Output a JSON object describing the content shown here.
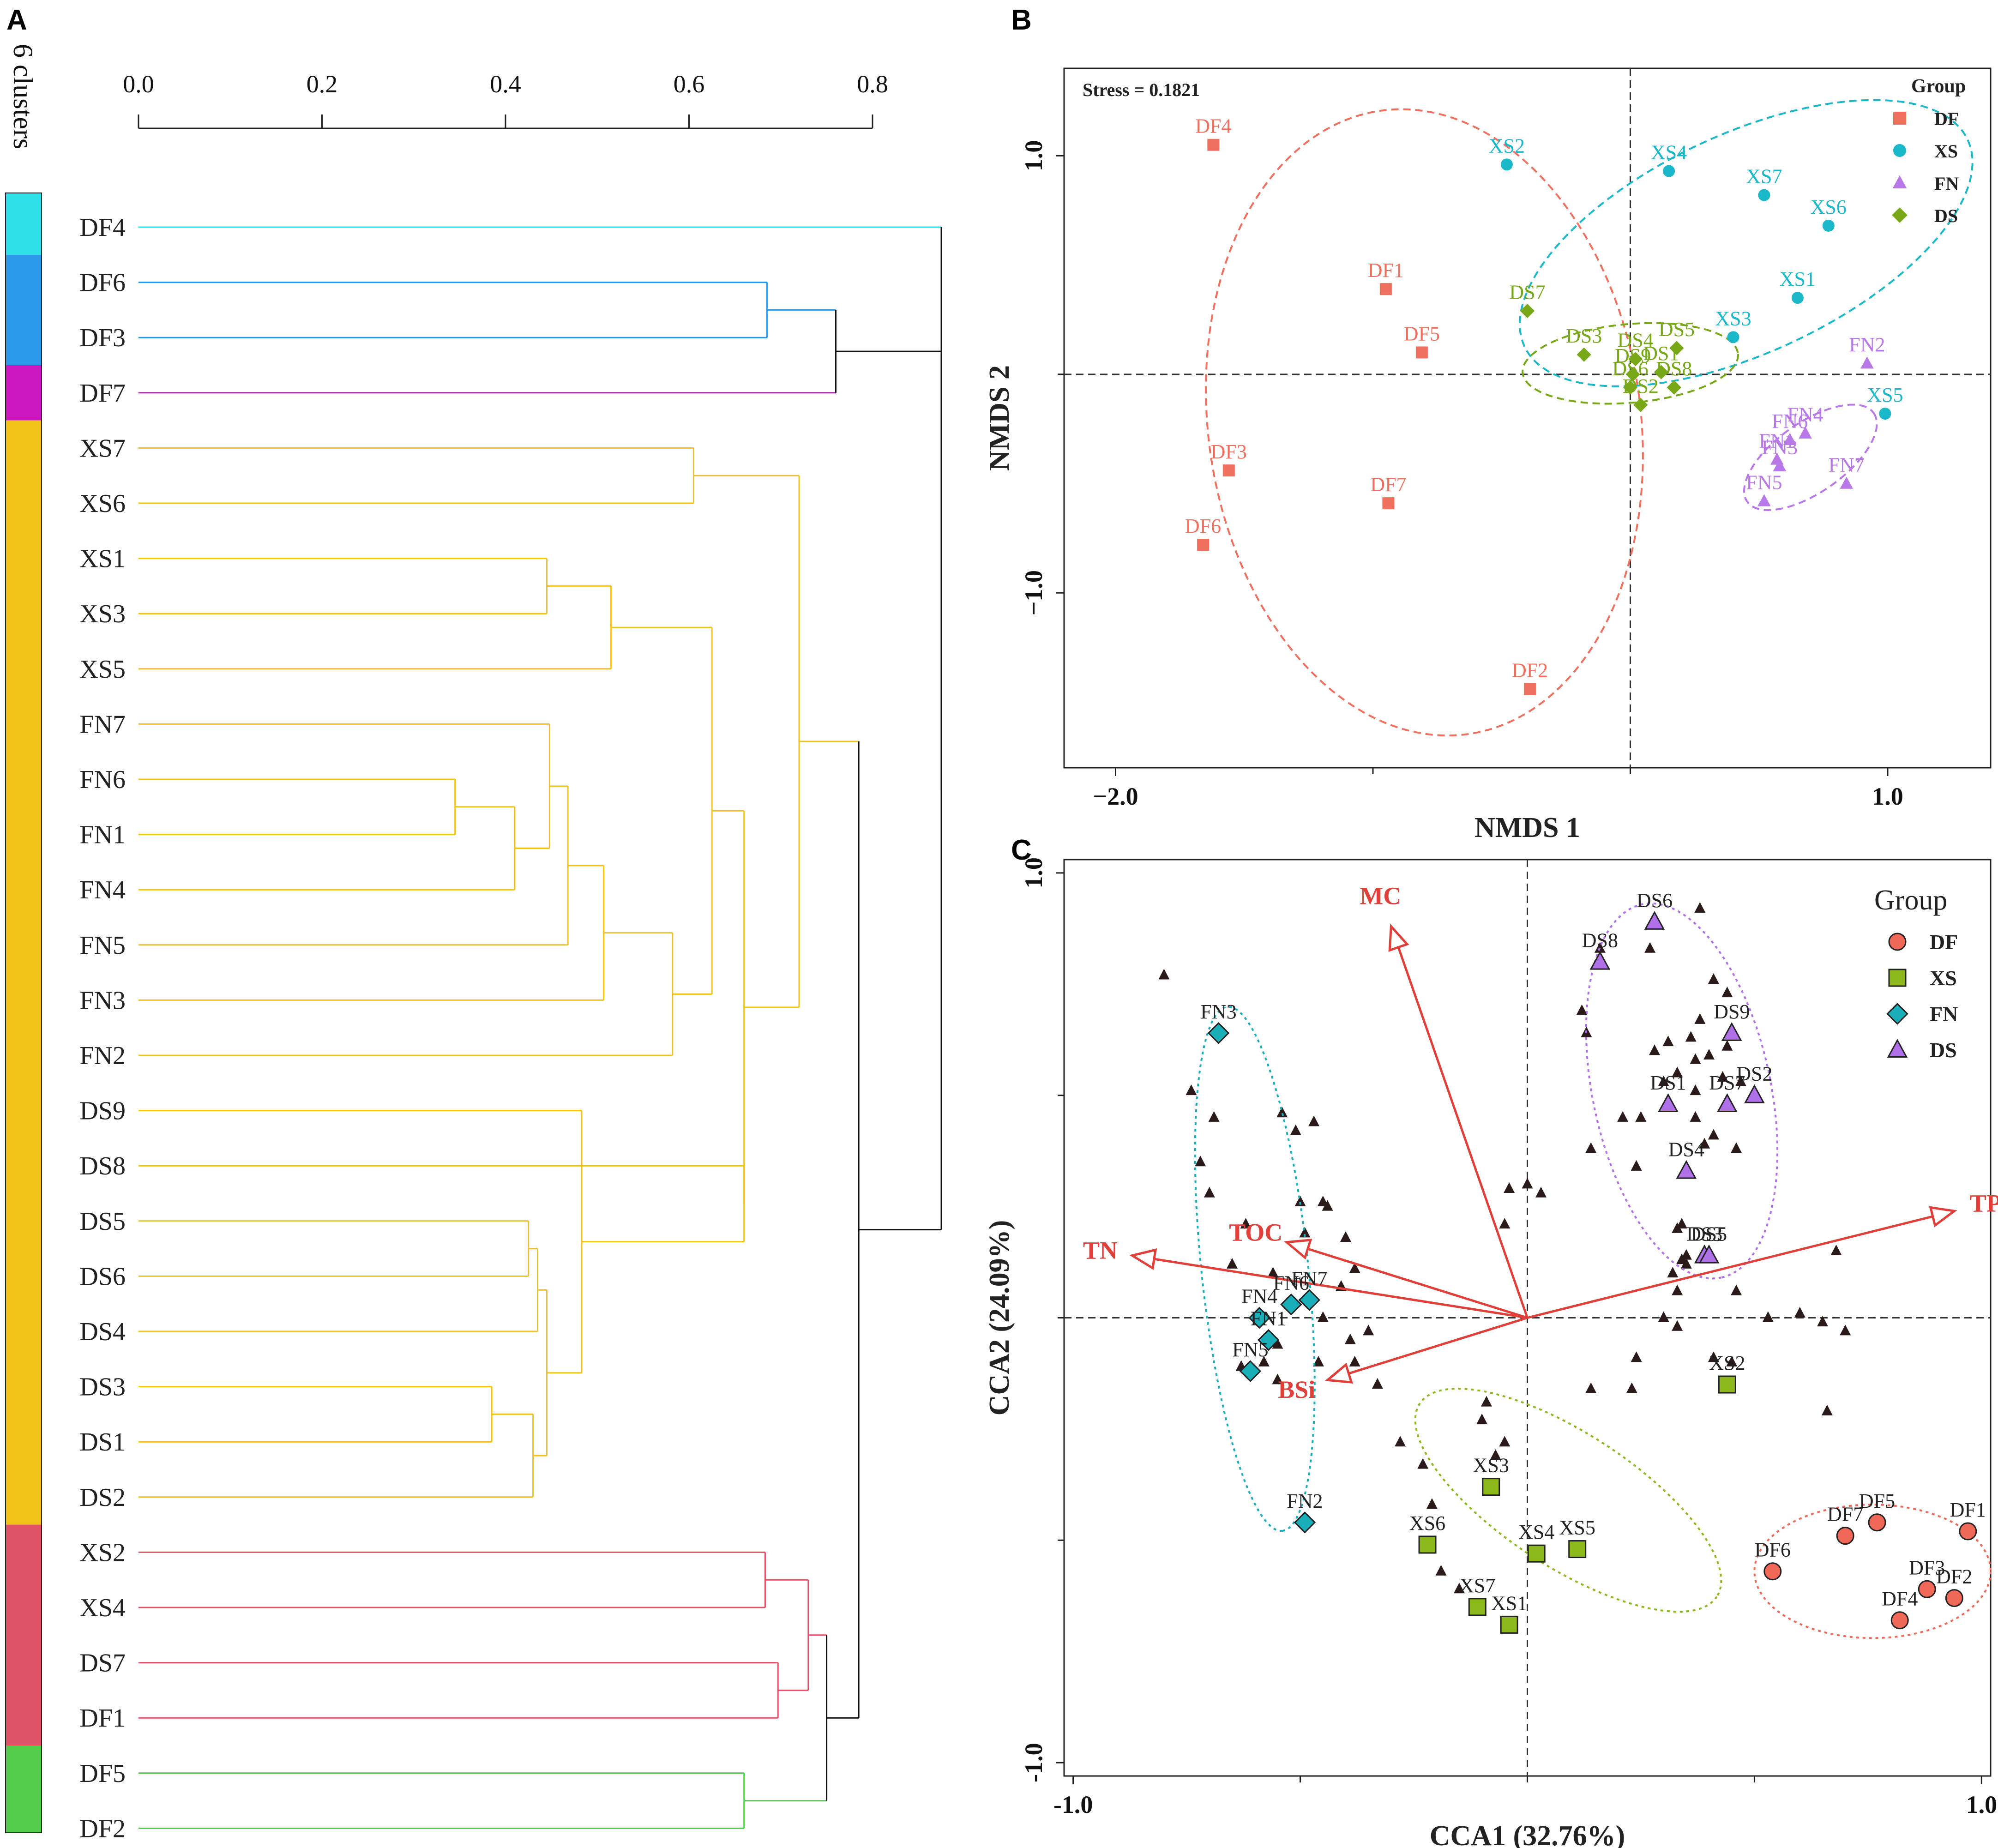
{
  "figure": {
    "panel_labels": [
      "A",
      "B",
      "C"
    ]
  },
  "chart_data": [
    {
      "type": "dendrogram",
      "panel": "A",
      "axis_ticks": [
        "0.0",
        "0.2",
        "0.4",
        "0.6",
        "0.8"
      ],
      "xlim": [
        0.0,
        0.8
      ],
      "cluster_label": "6 clusters",
      "leaves": [
        "DF4",
        "DF6",
        "DF3",
        "DF7",
        "XS7",
        "XS6",
        "XS1",
        "XS3",
        "XS5",
        "FN7",
        "FN6",
        "FN1",
        "FN4",
        "FN5",
        "FN3",
        "FN2",
        "DS9",
        "DS8",
        "DS5",
        "DS6",
        "DS4",
        "DS3",
        "DS1",
        "DS2",
        "XS2",
        "XS4",
        "DS7",
        "DF1",
        "DF5",
        "DF2"
      ],
      "clusters": [
        {
          "color": "#2fe0e8",
          "count": 1
        },
        {
          "color": "#2b98e8",
          "count": 2
        },
        {
          "color": "#cc18c0",
          "count": 1
        },
        {
          "color": "#f2c21a",
          "count": 20
        },
        {
          "color": "#e05268",
          "count": 4
        },
        {
          "color": "#52cc4a",
          "count": 2
        }
      ],
      "merges": [
        {
          "a": "FN6",
          "b": "FN1",
          "h": 0.345,
          "id": "n1"
        },
        {
          "a": "DS3",
          "b": "DS1",
          "h": 0.385,
          "id": "n2"
        },
        {
          "a": "n1",
          "b": "FN4",
          "h": 0.41,
          "id": "n3"
        },
        {
          "a": "DS5",
          "b": "DS6",
          "h": 0.425,
          "id": "n4"
        },
        {
          "a": "n2",
          "b": "DS2",
          "h": 0.43,
          "id": "n5"
        },
        {
          "a": "n4",
          "b": "DS4",
          "h": 0.435,
          "id": "n6"
        },
        {
          "a": "n6",
          "b": "n5",
          "h": 0.445,
          "id": "n7"
        },
        {
          "a": "XS1",
          "b": "XS3",
          "h": 0.445,
          "id": "n8"
        },
        {
          "a": "FN7",
          "b": "n3",
          "h": 0.448,
          "id": "n9"
        },
        {
          "a": "n9",
          "b": "FN5",
          "h": 0.468,
          "id": "n10"
        },
        {
          "a": "DS9",
          "b": "n7",
          "h": 0.483,
          "id": "n11"
        },
        {
          "a": "n8",
          "b": "XS5",
          "h": 0.515,
          "id": "n12"
        },
        {
          "a": "n10",
          "b": "FN3",
          "h": 0.507,
          "id": "n13"
        },
        {
          "a": "n13",
          "b": "FN2",
          "h": 0.582,
          "id": "n14"
        },
        {
          "a": "DS8",
          "b": "n11",
          "h": 0.66,
          "id": "n15"
        },
        {
          "a": "n12",
          "b": "n14",
          "h": 0.625,
          "id": "n16"
        },
        {
          "a": "n16",
          "b": "n15",
          "h": 0.66,
          "id": "n17"
        },
        {
          "a": "XS7",
          "b": "XS6",
          "h": 0.605,
          "id": "n18"
        },
        {
          "a": "n18",
          "b": "n17",
          "h": 0.72,
          "id": "n19"
        },
        {
          "a": "DF6",
          "b": "DF3",
          "h": 0.685,
          "id": "n20"
        },
        {
          "a": "n20",
          "b": "DF7",
          "h": 0.76,
          "id": "n21"
        },
        {
          "a": "XS2",
          "b": "XS4",
          "h": 0.683,
          "id": "n22"
        },
        {
          "a": "DS7",
          "b": "DF1",
          "h": 0.697,
          "id": "n23"
        },
        {
          "a": "n22",
          "b": "n23",
          "h": 0.73,
          "id": "n24"
        },
        {
          "a": "DF5",
          "b": "DF2",
          "h": 0.66,
          "id": "n25"
        },
        {
          "a": "n24",
          "b": "n25",
          "h": 0.75,
          "id": "n26"
        },
        {
          "a": "n19",
          "b": "n26",
          "h": 0.785,
          "id": "n27"
        },
        {
          "a": "n21",
          "b": "n27",
          "h": 0.875,
          "id": "n28"
        },
        {
          "a": "DF4",
          "b": "n28",
          "h": 0.875,
          "id": "n29"
        }
      ]
    },
    {
      "type": "scatter",
      "panel": "B",
      "title": "Stress = 0.1821",
      "xlabel": "NMDS 1",
      "ylabel": "NMDS 2",
      "xlim": [
        -2.2,
        1.4
      ],
      "ylim": [
        -1.8,
        1.4
      ],
      "xticks": [
        -2.0,
        1.0
      ],
      "yticks": [
        1.0,
        -1.0
      ],
      "xtick_labels": [
        "−2.0",
        "1.0"
      ],
      "ytick_labels": [
        "1.0",
        "−1.0"
      ],
      "legend_title": "Group",
      "legend_position": "top-right",
      "groups": [
        {
          "name": "DF",
          "color": "#f07060",
          "marker": "square",
          "points": [
            {
              "label": "DF4",
              "x": -1.62,
              "y": 1.05
            },
            {
              "label": "DF1",
              "x": -0.95,
              "y": 0.39
            },
            {
              "label": "DF5",
              "x": -0.81,
              "y": 0.1
            },
            {
              "label": "DF3",
              "x": -1.56,
              "y": -0.44
            },
            {
              "label": "DF7",
              "x": -0.94,
              "y": -0.59
            },
            {
              "label": "DF6",
              "x": -1.66,
              "y": -0.78
            },
            {
              "label": "DF2",
              "x": -0.39,
              "y": -1.44
            }
          ]
        },
        {
          "name": "XS",
          "color": "#1ab8c8",
          "marker": "circle",
          "points": [
            {
              "label": "XS2",
              "x": -0.48,
              "y": 0.96
            },
            {
              "label": "XS4",
              "x": 0.15,
              "y": 0.93
            },
            {
              "label": "XS7",
              "x": 0.52,
              "y": 0.82
            },
            {
              "label": "XS6",
              "x": 0.77,
              "y": 0.68
            },
            {
              "label": "XS1",
              "x": 0.65,
              "y": 0.35
            },
            {
              "label": "XS3",
              "x": 0.4,
              "y": 0.17
            },
            {
              "label": "XS5",
              "x": 0.99,
              "y": -0.18
            }
          ]
        },
        {
          "name": "FN",
          "color": "#b878e8",
          "marker": "triangle",
          "points": [
            {
              "label": "FN2",
              "x": 0.92,
              "y": 0.05
            },
            {
              "label": "FN4",
              "x": 0.68,
              "y": -0.27
            },
            {
              "label": "FN6",
              "x": 0.62,
              "y": -0.3
            },
            {
              "label": "FN1",
              "x": 0.57,
              "y": -0.39
            },
            {
              "label": "FN3",
              "x": 0.58,
              "y": -0.42
            },
            {
              "label": "FN7",
              "x": 0.84,
              "y": -0.5
            },
            {
              "label": "FN5",
              "x": 0.52,
              "y": -0.58
            }
          ]
        },
        {
          "name": "DS",
          "color": "#78a818",
          "marker": "diamond",
          "points": [
            {
              "label": "DS7",
              "x": -0.4,
              "y": 0.29
            },
            {
              "label": "DS3",
              "x": -0.18,
              "y": 0.09
            },
            {
              "label": "DS4",
              "x": 0.02,
              "y": 0.07
            },
            {
              "label": "DS5",
              "x": 0.18,
              "y": 0.12
            },
            {
              "label": "DS9",
              "x": 0.01,
              "y": 0.0
            },
            {
              "label": "DS1",
              "x": 0.12,
              "y": 0.01
            },
            {
              "label": "DS6",
              "x": 0.0,
              "y": -0.06
            },
            {
              "label": "DS8",
              "x": 0.17,
              "y": -0.06
            },
            {
              "label": "DS2",
              "x": 0.04,
              "y": -0.14
            }
          ]
        }
      ],
      "ellipses": [
        {
          "group": "DF",
          "cx": -0.8,
          "cy": -0.22,
          "rx": 0.84,
          "ry": 1.44,
          "rotation_deg": -8
        },
        {
          "group": "XS",
          "cx": 0.45,
          "cy": 0.6,
          "rx": 0.95,
          "ry": 0.5,
          "rotation_deg": -25
        },
        {
          "group": "FN",
          "cx": 0.7,
          "cy": -0.38,
          "rx": 0.3,
          "ry": 0.16,
          "rotation_deg": -35
        },
        {
          "group": "DS",
          "cx": 0.0,
          "cy": 0.05,
          "rx": 0.42,
          "ry": 0.18,
          "rotation_deg": -5
        }
      ],
      "reference_lines": {
        "x": 0,
        "y": 0
      }
    },
    {
      "type": "scatter",
      "panel": "C",
      "xlabel": "CCA1 (32.76%)",
      "ylabel": "CCA2 (24.09%)",
      "xlim": [
        -1.02,
        1.02
      ],
      "ylim": [
        -1.03,
        1.03
      ],
      "xticks": [
        -1.0,
        1.0
      ],
      "yticks": [
        1.0,
        -1.0
      ],
      "xtick_labels": [
        "-1.0",
        "1.0"
      ],
      "ytick_labels": [
        "1.0",
        "-1.0"
      ],
      "legend_title": "Group",
      "legend_position": "top-right",
      "groups": [
        {
          "name": "DF",
          "color": "#f06858",
          "marker": "circle",
          "points": [
            {
              "label": "DF1",
              "x": 0.97,
              "y": -0.48
            },
            {
              "label": "DF5",
              "x": 0.77,
              "y": -0.46
            },
            {
              "label": "DF7",
              "x": 0.7,
              "y": -0.49
            },
            {
              "label": "DF6",
              "x": 0.54,
              "y": -0.57
            },
            {
              "label": "DF3",
              "x": 0.88,
              "y": -0.61
            },
            {
              "label": "DF2",
              "x": 0.94,
              "y": -0.63
            },
            {
              "label": "DF4",
              "x": 0.82,
              "y": -0.68
            }
          ]
        },
        {
          "name": "XS",
          "color": "#8cb81c",
          "marker": "square",
          "points": [
            {
              "label": "XS2",
              "x": 0.44,
              "y": -0.15
            },
            {
              "label": "XS3",
              "x": -0.08,
              "y": -0.38
            },
            {
              "label": "XS6",
              "x": -0.22,
              "y": -0.51
            },
            {
              "label": "XS4",
              "x": 0.02,
              "y": -0.53
            },
            {
              "label": "XS5",
              "x": 0.11,
              "y": -0.52
            },
            {
              "label": "XS7",
              "x": -0.11,
              "y": -0.65
            },
            {
              "label": "XS1",
              "x": -0.04,
              "y": -0.69
            }
          ]
        },
        {
          "name": "FN",
          "color": "#1aaeb8",
          "marker": "diamond",
          "points": [
            {
              "label": "FN3",
              "x": -0.68,
              "y": 0.64
            },
            {
              "label": "FN7",
              "x": -0.48,
              "y": 0.04
            },
            {
              "label": "FN6",
              "x": -0.52,
              "y": 0.03
            },
            {
              "label": "FN4",
              "x": -0.59,
              "y": 0.0
            },
            {
              "label": "FN1",
              "x": -0.57,
              "y": -0.05
            },
            {
              "label": "FN5",
              "x": -0.61,
              "y": -0.12
            },
            {
              "label": "FN2",
              "x": -0.49,
              "y": -0.46
            }
          ]
        },
        {
          "name": "DS",
          "color": "#b070e8",
          "marker": "triangle",
          "points": [
            {
              "label": "DS6",
              "x": 0.28,
              "y": 0.89
            },
            {
              "label": "DS8",
              "x": 0.16,
              "y": 0.8
            },
            {
              "label": "DS9",
              "x": 0.45,
              "y": 0.64
            },
            {
              "label": "DS1",
              "x": 0.31,
              "y": 0.48
            },
            {
              "label": "DS7",
              "x": 0.44,
              "y": 0.48
            },
            {
              "label": "DS2",
              "x": 0.5,
              "y": 0.5
            },
            {
              "label": "DS4",
              "x": 0.35,
              "y": 0.33
            },
            {
              "label": "DS3",
              "x": 0.39,
              "y": 0.14
            },
            {
              "label": "DS5",
              "x": 0.4,
              "y": 0.14
            }
          ]
        }
      ],
      "species": [
        [
          -0.8,
          0.77
        ],
        [
          -0.74,
          0.51
        ],
        [
          -0.69,
          0.45
        ],
        [
          -0.72,
          0.35
        ],
        [
          -0.7,
          0.28
        ],
        [
          -0.54,
          0.46
        ],
        [
          -0.51,
          0.42
        ],
        [
          -0.47,
          0.44
        ],
        [
          -0.45,
          0.26
        ],
        [
          -0.5,
          0.26
        ],
        [
          -0.44,
          0.25
        ],
        [
          -0.4,
          0.18
        ],
        [
          -0.38,
          0.11
        ],
        [
          -0.41,
          0.07
        ],
        [
          -0.45,
          0.0
        ],
        [
          -0.39,
          -0.05
        ],
        [
          -0.38,
          -0.1
        ],
        [
          -0.46,
          -0.1
        ],
        [
          -0.55,
          -0.06
        ],
        [
          -0.58,
          -0.1
        ],
        [
          -0.63,
          -0.11
        ],
        [
          -0.55,
          -0.14
        ],
        [
          -0.62,
          0.21
        ],
        [
          -0.65,
          0.12
        ],
        [
          -0.56,
          0.1
        ],
        [
          -0.49,
          0.19
        ],
        [
          -0.35,
          -0.03
        ],
        [
          -0.33,
          -0.15
        ],
        [
          -0.28,
          -0.28
        ],
        [
          -0.21,
          -0.42
        ],
        [
          -0.23,
          -0.33
        ],
        [
          -0.09,
          -0.19
        ],
        [
          -0.07,
          -0.31
        ],
        [
          -0.1,
          -0.23
        ],
        [
          -0.05,
          -0.28
        ],
        [
          -0.19,
          -0.57
        ],
        [
          -0.15,
          -0.61
        ],
        [
          -0.11,
          -0.65
        ],
        [
          -0.04,
          0.29
        ],
        [
          0.0,
          0.3
        ],
        [
          0.03,
          0.28
        ],
        [
          -0.05,
          0.21
        ],
        [
          0.12,
          0.69
        ],
        [
          0.13,
          0.64
        ],
        [
          0.16,
          0.83
        ],
        [
          0.21,
          0.45
        ],
        [
          0.14,
          0.38
        ],
        [
          0.24,
          0.34
        ],
        [
          0.25,
          0.45
        ],
        [
          0.28,
          0.6
        ],
        [
          0.31,
          0.62
        ],
        [
          0.33,
          0.55
        ],
        [
          0.3,
          0.53
        ],
        [
          0.36,
          0.63
        ],
        [
          0.37,
          0.58
        ],
        [
          0.38,
          0.67
        ],
        [
          0.4,
          0.59
        ],
        [
          0.37,
          0.51
        ],
        [
          0.37,
          0.45
        ],
        [
          0.39,
          0.39
        ],
        [
          0.41,
          0.41
        ],
        [
          0.43,
          0.54
        ],
        [
          0.44,
          0.61
        ],
        [
          0.47,
          0.53
        ],
        [
          0.46,
          0.38
        ],
        [
          0.44,
          0.73
        ],
        [
          0.38,
          0.92
        ],
        [
          0.41,
          0.76
        ],
        [
          0.27,
          0.83
        ],
        [
          0.33,
          0.2
        ],
        [
          0.34,
          0.21
        ],
        [
          0.35,
          0.14
        ],
        [
          0.32,
          0.1
        ],
        [
          0.33,
          0.06
        ],
        [
          0.46,
          0.06
        ],
        [
          0.3,
          0.0
        ],
        [
          0.33,
          -0.02
        ],
        [
          0.53,
          0.0
        ],
        [
          0.6,
          0.01
        ],
        [
          0.65,
          -0.01
        ],
        [
          0.66,
          -0.21
        ],
        [
          0.7,
          -0.03
        ],
        [
          0.41,
          -0.09
        ],
        [
          0.45,
          -0.1
        ],
        [
          0.24,
          -0.09
        ],
        [
          0.14,
          -0.16
        ],
        [
          0.23,
          -0.16
        ],
        [
          0.68,
          0.15
        ],
        [
          0.34,
          0.13
        ],
        [
          0.35,
          0.12
        ]
      ],
      "vectors": [
        {
          "label": "MC",
          "x": -0.3,
          "y": 0.88
        },
        {
          "label": "TN",
          "x": -0.87,
          "y": 0.14
        },
        {
          "label": "TOC",
          "x": -0.53,
          "y": 0.17
        },
        {
          "label": "BSi",
          "x": -0.44,
          "y": -0.14
        },
        {
          "label": "TP",
          "x": 0.94,
          "y": 0.24
        }
      ],
      "vector_color": "#e0403a",
      "ellipses": [
        {
          "group": "DS",
          "cx": 0.34,
          "cy": 0.51,
          "rx": 0.42,
          "ry": 0.2,
          "rotation_deg": 78
        },
        {
          "group": "FN",
          "cx": -0.6,
          "cy": 0.11,
          "rx": 0.58,
          "ry": 0.12,
          "rotation_deg": 84
        },
        {
          "group": "XS",
          "cx": 0.09,
          "cy": -0.41,
          "rx": 0.39,
          "ry": 0.15,
          "rotation_deg": 33
        },
        {
          "group": "DF",
          "cx": 0.76,
          "cy": -0.57,
          "rx": 0.26,
          "ry": 0.15,
          "rotation_deg": 0
        }
      ],
      "reference_lines": {
        "x": 0,
        "y": 0
      }
    }
  ]
}
